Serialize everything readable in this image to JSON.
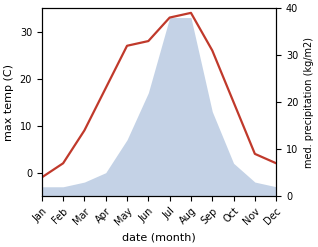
{
  "chart_data": {
    "type": "line",
    "xlabel": "date (month)",
    "ylabel": "max temp (C)",
    "y2label": "med. precipitation (kg/m2)",
    "categories": [
      "Jan",
      "Feb",
      "Mar",
      "Apr",
      "May",
      "Jun",
      "Jul",
      "Aug",
      "Sep",
      "Oct",
      "Nov",
      "Dec"
    ],
    "series": [
      {
        "type": "area",
        "axis": "y2",
        "color": "#b0c4de",
        "values": [
          2,
          2,
          3,
          5,
          12,
          22,
          38,
          38,
          18,
          7,
          3,
          2
        ]
      },
      {
        "type": "line",
        "color": "#c0392b",
        "values": [
          -1,
          2,
          9,
          18,
          27,
          28,
          33,
          34,
          26,
          15,
          4,
          2
        ]
      }
    ],
    "ylim": [
      -5,
      35
    ],
    "yticks": [
      0,
      10,
      20,
      30
    ],
    "y2lim": [
      0,
      40
    ],
    "y2ticks": [
      0,
      10,
      20,
      30,
      40
    ],
    "grid": false
  }
}
